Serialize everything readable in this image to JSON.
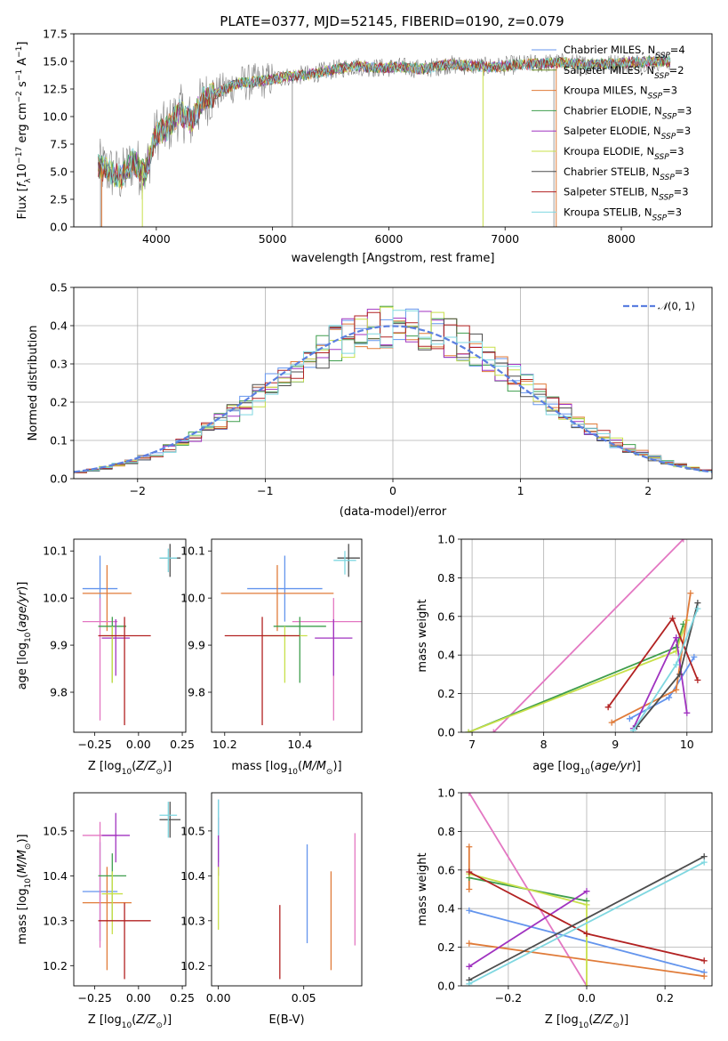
{
  "chart_data": [
    {
      "type": "line",
      "title": "PLATE=0377, MJD=52145, FIBERID=0190, z=0.079",
      "xlabel": "wavelength [Angstrom, rest frame]",
      "ylabel": "Flux [f$_\\lambda$10$^{-17}$ erg cm$^{-2}$ s$^{-1}$ A$^{-1}$]",
      "ylabel_parts": [
        "Flux [",
        "f",
        "λ",
        "10",
        "−17",
        " erg cm",
        "−2",
        " s",
        "−1",
        " A",
        "−1",
        "]"
      ],
      "xlim": [
        3290,
        8780
      ],
      "ylim": [
        0,
        17.5
      ],
      "xticks": [
        4000,
        5000,
        6000,
        7000,
        8000
      ],
      "yticks": [
        0.0,
        2.5,
        5.0,
        7.5,
        10.0,
        12.5,
        15.0,
        17.5
      ],
      "grid": false,
      "legend_position": "top-right",
      "spectrum_profile": {
        "x": [
          3500,
          3600,
          3700,
          3800,
          3900,
          4000,
          4100,
          4200,
          4300,
          4400,
          4500,
          4700,
          4900,
          5100,
          5300,
          5500,
          5700,
          5900,
          6100,
          6300,
          6500,
          6700,
          6900,
          7100,
          7300,
          7500,
          7700,
          7900,
          8100,
          8300
        ],
        "y": [
          5.5,
          5.0,
          4.5,
          6.0,
          4.8,
          8.5,
          9.0,
          10.5,
          9.5,
          11.5,
          12.0,
          13.0,
          13.2,
          13.6,
          13.8,
          14.2,
          14.6,
          14.4,
          14.5,
          14.3,
          14.7,
          14.6,
          14.5,
          14.7,
          14.8,
          14.9,
          14.7,
          14.8,
          14.9,
          15.0
        ]
      },
      "series": [
        {
          "name": "Chabrier MILES",
          "nssp": "4",
          "color": "#6495ed"
        },
        {
          "name": "Salpeter MILES",
          "nssp": "2",
          "color": "#6b8e23"
        },
        {
          "name": "Kroupa MILES",
          "nssp": "3",
          "color": "#e07b39"
        },
        {
          "name": "Chabrier ELODIE",
          "nssp": "3",
          "color": "#3f9e4d"
        },
        {
          "name": "Salpeter ELODIE",
          "nssp": "3",
          "color": "#a033c0"
        },
        {
          "name": "Kroupa ELODIE",
          "nssp": "3",
          "color": "#c8e04a"
        },
        {
          "name": "Chabrier STELIB",
          "nssp": "3",
          "color": "#4d4d4d"
        },
        {
          "name": "Salpeter STELIB",
          "nssp": "3",
          "color": "#b22222"
        },
        {
          "name": "Kroupa STELIB",
          "nssp": "3",
          "color": "#7fd7e0"
        }
      ]
    },
    {
      "type": "line",
      "xlabel": "(data-model)/error",
      "ylabel": "Normed distribution",
      "xlim": [
        -2.5,
        2.5
      ],
      "ylim": [
        0,
        0.5
      ],
      "xticks": [
        -2,
        -1,
        0,
        1,
        2
      ],
      "yticks": [
        0.0,
        0.1,
        0.2,
        0.3,
        0.4,
        0.5
      ],
      "grid": true,
      "legend_position": "top-right",
      "reference_curve": {
        "name": "N(0,1)",
        "color": "#5b7fe0",
        "style": "dashed"
      },
      "bin_width": 0.1,
      "histogram_colors": [
        "#6495ed",
        "#e07b39",
        "#3f9e4d",
        "#a033c0",
        "#c8e04a",
        "#4d4d4d",
        "#b22222",
        "#7fd7e0"
      ]
    },
    {
      "type": "scatter",
      "xlabel": "Z [log10(Z/Z⊙)]",
      "ylabel": "age  [log10(age/yr)]",
      "xlim": [
        -0.37,
        0.27
      ],
      "ylim": [
        9.715,
        10.125
      ],
      "xticks": [
        -0.25,
        0.0,
        0.25
      ],
      "yticks": [
        9.8,
        9.9,
        10.0,
        10.1
      ],
      "grid": false,
      "points": [
        {
          "x": -0.22,
          "y": 10.02,
          "xerr": 0.1,
          "yerr_low": 0.07,
          "yerr_high": 0.07,
          "color": "#6495ed"
        },
        {
          "x": -0.18,
          "y": 10.01,
          "xerr": 0.14,
          "yerr_low": 0.08,
          "yerr_high": 0.06,
          "color": "#e07b39"
        },
        {
          "x": -0.22,
          "y": 9.95,
          "xerr": 0.1,
          "yerr_low": 0.21,
          "yerr_high": 0.05,
          "color": "#e377c2"
        },
        {
          "x": -0.15,
          "y": 9.94,
          "xerr": 0.08,
          "yerr_low": 0.12,
          "yerr_high": 0.02,
          "color": "#3f9e4d"
        },
        {
          "x": -0.13,
          "y": 9.915,
          "xerr": 0.08,
          "yerr_low": 0.08,
          "yerr_high": 0.04,
          "color": "#a033c0"
        },
        {
          "x": -0.15,
          "y": 9.92,
          "xerr": 0.06,
          "yerr_low": 0.1,
          "yerr_high": 0.02,
          "color": "#c8e04a"
        },
        {
          "x": -0.08,
          "y": 9.92,
          "xerr": 0.15,
          "yerr_low": 0.19,
          "yerr_high": 0.04,
          "color": "#b22222"
        },
        {
          "x": 0.18,
          "y": 10.085,
          "xerr": 0.06,
          "yerr_low": 0.04,
          "yerr_high": 0.03,
          "color": "#4d4d4d"
        },
        {
          "x": 0.17,
          "y": 10.085,
          "xerr": 0.05,
          "yerr_low": 0.03,
          "yerr_high": 0.02,
          "color": "#7fd7e0"
        }
      ]
    },
    {
      "type": "scatter",
      "xlabel": "mass [log10(M/M⊙)]",
      "ylabel": "",
      "xlim": [
        10.165,
        10.565
      ],
      "ylim": [
        9.715,
        10.125
      ],
      "xticks": [
        10.2,
        10.4
      ],
      "yticks": [
        9.8,
        9.9,
        10.0,
        10.1
      ],
      "grid": false,
      "points": [
        {
          "x": 10.36,
          "y": 10.02,
          "xerr": 0.1,
          "yerr_low": 0.07,
          "yerr_high": 0.07,
          "color": "#6495ed"
        },
        {
          "x": 10.34,
          "y": 10.01,
          "xerr": 0.15,
          "yerr_low": 0.08,
          "yerr_high": 0.06,
          "color": "#e07b39"
        },
        {
          "x": 10.49,
          "y": 9.95,
          "xerr": 0.11,
          "yerr_low": 0.21,
          "yerr_high": 0.05,
          "color": "#e377c2"
        },
        {
          "x": 10.4,
          "y": 9.94,
          "xerr": 0.07,
          "yerr_low": 0.12,
          "yerr_high": 0.02,
          "color": "#3f9e4d"
        },
        {
          "x": 10.49,
          "y": 9.915,
          "xerr": 0.05,
          "yerr_low": 0.08,
          "yerr_high": 0.04,
          "color": "#a033c0"
        },
        {
          "x": 10.36,
          "y": 9.92,
          "xerr": 0.06,
          "yerr_low": 0.1,
          "yerr_high": 0.02,
          "color": "#c8e04a"
        },
        {
          "x": 10.3,
          "y": 9.92,
          "xerr": 0.1,
          "yerr_low": 0.19,
          "yerr_high": 0.04,
          "color": "#b22222"
        },
        {
          "x": 10.53,
          "y": 10.085,
          "xerr": 0.03,
          "yerr_low": 0.04,
          "yerr_high": 0.03,
          "color": "#4d4d4d"
        },
        {
          "x": 10.52,
          "y": 10.08,
          "xerr": 0.03,
          "yerr_low": 0.03,
          "yerr_high": 0.02,
          "color": "#7fd7e0"
        }
      ]
    },
    {
      "type": "line",
      "xlabel": "age  [log10(age/yr)]",
      "ylabel": "mass weight",
      "xlim": [
        6.85,
        10.35
      ],
      "ylim": [
        0,
        1.0
      ],
      "xticks": [
        7,
        8,
        9,
        10
      ],
      "yticks": [
        0.0,
        0.2,
        0.4,
        0.6,
        0.8,
        1.0
      ],
      "grid": true,
      "series": [
        {
          "color": "#e377c2",
          "x": [
            7.3,
            9.95
          ],
          "y": [
            0.0,
            1.0
          ]
        },
        {
          "color": "#3f9e4d",
          "x": [
            6.95,
            9.85,
            9.95
          ],
          "y": [
            0.0,
            0.44,
            0.56
          ]
        },
        {
          "color": "#c8e04a",
          "x": [
            6.95,
            9.85,
            10.0
          ],
          "y": [
            0.0,
            0.42,
            0.58
          ]
        },
        {
          "color": "#6495ed",
          "x": [
            9.2,
            9.75,
            10.1
          ],
          "y": [
            0.07,
            0.18,
            0.39
          ]
        },
        {
          "color": "#e07b39",
          "x": [
            8.95,
            9.85,
            10.05
          ],
          "y": [
            0.05,
            0.22,
            0.72
          ]
        },
        {
          "color": "#a033c0",
          "x": [
            9.25,
            9.85,
            10.0
          ],
          "y": [
            0.02,
            0.49,
            0.1
          ]
        },
        {
          "color": "#b22222",
          "x": [
            8.9,
            9.8,
            10.15
          ],
          "y": [
            0.13,
            0.59,
            0.27
          ]
        },
        {
          "color": "#4d4d4d",
          "x": [
            9.3,
            9.9,
            10.15
          ],
          "y": [
            0.03,
            0.3,
            0.67
          ]
        },
        {
          "color": "#7fd7e0",
          "x": [
            9.25,
            9.85,
            10.15
          ],
          "y": [
            0.01,
            0.35,
            0.64
          ]
        }
      ]
    },
    {
      "type": "scatter",
      "xlabel": "Z [log10(Z/Z⊙)]",
      "ylabel": "mass [log10(M/M⊙)]",
      "xlim": [
        -0.37,
        0.27
      ],
      "ylim": [
        10.155,
        10.585
      ],
      "xticks": [
        -0.25,
        0.0,
        0.25
      ],
      "yticks": [
        10.2,
        10.3,
        10.4,
        10.5
      ],
      "grid": false,
      "points": [
        {
          "x": -0.22,
          "y": 10.365,
          "xerr": 0.1,
          "yerr_low": 0.11,
          "yerr_high": 0.11,
          "color": "#6495ed"
        },
        {
          "x": -0.18,
          "y": 10.34,
          "xerr": 0.14,
          "yerr_low": 0.15,
          "yerr_high": 0.08,
          "color": "#e07b39"
        },
        {
          "x": -0.22,
          "y": 10.49,
          "xerr": 0.1,
          "yerr_low": 0.25,
          "yerr_high": 0.03,
          "color": "#e377c2"
        },
        {
          "x": -0.15,
          "y": 10.4,
          "xerr": 0.08,
          "yerr_low": 0.1,
          "yerr_high": 0.05,
          "color": "#3f9e4d"
        },
        {
          "x": -0.13,
          "y": 10.49,
          "xerr": 0.08,
          "yerr_low": 0.06,
          "yerr_high": 0.05,
          "color": "#a033c0"
        },
        {
          "x": -0.15,
          "y": 10.36,
          "xerr": 0.06,
          "yerr_low": 0.09,
          "yerr_high": 0.05,
          "color": "#c8e04a"
        },
        {
          "x": -0.08,
          "y": 10.3,
          "xerr": 0.15,
          "yerr_low": 0.13,
          "yerr_high": 0.04,
          "color": "#b22222"
        },
        {
          "x": 0.18,
          "y": 10.525,
          "xerr": 0.06,
          "yerr_low": 0.04,
          "yerr_high": 0.04,
          "color": "#4d4d4d"
        },
        {
          "x": 0.17,
          "y": 10.535,
          "xerr": 0.05,
          "yerr_low": 0.05,
          "yerr_high": 0.03,
          "color": "#7fd7e0"
        }
      ]
    },
    {
      "type": "scatter",
      "xlabel": "E(B-V)",
      "ylabel": "",
      "xlim": [
        -0.004,
        0.084
      ],
      "ylim": [
        10.155,
        10.585
      ],
      "xticks": [
        0.0,
        0.05
      ],
      "yticks": [
        10.2,
        10.3,
        10.4,
        10.5
      ],
      "grid": false,
      "points": [
        {
          "x": 0.0,
          "y": 10.5,
          "yerr_low": 0.07,
          "yerr_high": 0.07,
          "color": "#6495ed"
        },
        {
          "x": 0.0,
          "y": 10.45,
          "yerr_low": 0.05,
          "yerr_high": 0.08,
          "color": "#a033c0"
        },
        {
          "x": 0.0,
          "y": 10.35,
          "yerr_low": 0.07,
          "yerr_high": 0.07,
          "color": "#c8e04a"
        },
        {
          "x": 0.0,
          "y": 10.53,
          "yerr_low": 0.04,
          "yerr_high": 0.04,
          "color": "#7fd7e0"
        },
        {
          "x": 0.052,
          "y": 10.36,
          "yerr_low": 0.11,
          "yerr_high": 0.11,
          "color": "#6495ed"
        },
        {
          "x": 0.066,
          "y": 10.3,
          "yerr_low": 0.11,
          "yerr_high": 0.11,
          "color": "#e07b39"
        },
        {
          "x": 0.036,
          "y": 10.25,
          "yerr_low": 0.08,
          "yerr_high": 0.085,
          "color": "#b22222"
        },
        {
          "x": 0.08,
          "y": 10.37,
          "yerr_low": 0.125,
          "yerr_high": 0.125,
          "color": "#e377c2"
        }
      ]
    },
    {
      "type": "line",
      "xlabel": "Z [log10(Z/Z⊙)]",
      "ylabel": "mass weight",
      "xlim": [
        -0.32,
        0.32
      ],
      "ylim": [
        0,
        1.0
      ],
      "xticks": [
        -0.2,
        0.0,
        0.2
      ],
      "yticks": [
        0.0,
        0.2,
        0.4,
        0.6,
        0.8,
        1.0
      ],
      "grid": true,
      "series": [
        {
          "color": "#e377c2",
          "x": [
            -0.3,
            0.0
          ],
          "y": [
            1.0,
            0.0
          ]
        },
        {
          "color": "#6495ed",
          "x": [
            -0.3,
            0.3
          ],
          "y": [
            0.39,
            0.07
          ]
        },
        {
          "color": "#e07b39",
          "x": [
            -0.3,
            0.3
          ],
          "y": [
            0.22,
            0.05
          ]
        },
        {
          "color": "#e07b39",
          "x": [
            -0.3,
            -0.3
          ],
          "y": [
            0.72,
            0.5
          ]
        },
        {
          "color": "#3f9e4d",
          "x": [
            -0.3,
            0.0
          ],
          "y": [
            0.56,
            0.44
          ]
        },
        {
          "color": "#c8e04a",
          "x": [
            -0.3,
            0.0,
            0.0
          ],
          "y": [
            0.58,
            0.42,
            0.0
          ]
        },
        {
          "color": "#a033c0",
          "x": [
            -0.3,
            0.0
          ],
          "y": [
            0.1,
            0.49
          ]
        },
        {
          "color": "#b22222",
          "x": [
            -0.3,
            0.0,
            0.3
          ],
          "y": [
            0.59,
            0.27,
            0.13
          ]
        },
        {
          "color": "#4d4d4d",
          "x": [
            -0.3,
            0.3
          ],
          "y": [
            0.03,
            0.67
          ]
        },
        {
          "color": "#7fd7e0",
          "x": [
            -0.3,
            0.3
          ],
          "y": [
            0.01,
            0.64
          ]
        }
      ]
    }
  ]
}
